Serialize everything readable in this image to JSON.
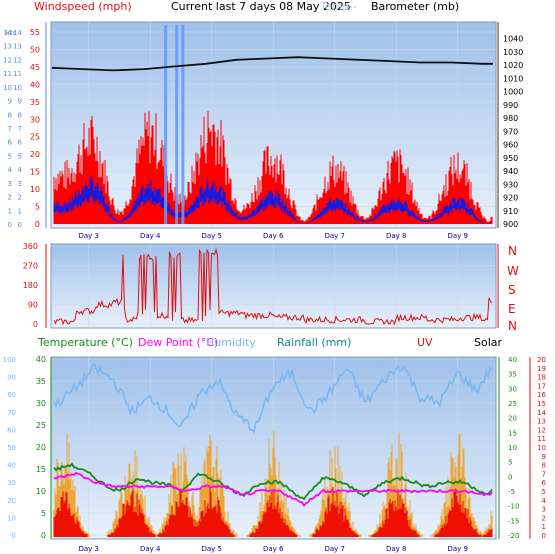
{
  "header": {
    "title": "Current last 7 days 08 May 2025",
    "windspeed_label": "Windspeed (mph)",
    "barometer_label": "Barometer (mb)",
    "temp_ghost": "Temp.",
    "dash_ghost": "---"
  },
  "panel2": {
    "compass": [
      "N",
      "W",
      "S",
      "E",
      "N"
    ]
  },
  "panel3": {
    "legend": {
      "temperature": "Temperature (°C)",
      "dewpoint": "Dew Point (°C)",
      "humidity": "Humidity",
      "rainfall": "Rainfall (mm)",
      "uv": "UV",
      "solar": "Solar"
    }
  },
  "colors": {
    "plot_bg_top": "#a9c6ea",
    "plot_bg_bottom": "#e2ecf8",
    "wind_gust": "#ff0000",
    "wind_avg": "#1a1adc",
    "pressure": "#111111",
    "direction": "#dd1111",
    "temperature": "#1a8a1a",
    "dewpoint": "#ff00ff",
    "humidity": "#7ab8f0",
    "solar": "#f0a020",
    "uv": "#ee1100",
    "rain_spike": "#6699ff"
  },
  "chart_data": [
    {
      "type": "line",
      "id": "wind_pressure",
      "categories": [
        "Day 3",
        "Day 4",
        "Day 5",
        "Day 6",
        "Day 7",
        "Day 8",
        "Day 9"
      ],
      "ylabel": "Windspeed (mph)",
      "ylim_mph": [
        0,
        55
      ],
      "y_ticks_mph": [
        0,
        5,
        10,
        15,
        20,
        25,
        30,
        35,
        40,
        45,
        50,
        55
      ],
      "y_ticks_ms": [
        0,
        1,
        2,
        3,
        4,
        5,
        6,
        7,
        8,
        9,
        10,
        11,
        12,
        13,
        14
      ],
      "y_ticks_kts": [
        0,
        1,
        2,
        3,
        4,
        5,
        6,
        7,
        8,
        9,
        10,
        11,
        12,
        13,
        14
      ],
      "ylim_mb": [
        900,
        1045
      ],
      "y_ticks_mb": [
        900,
        910,
        920,
        930,
        940,
        950,
        960,
        970,
        980,
        990,
        1000,
        1010,
        1020,
        1030,
        1040
      ],
      "y_label_left_small": "kts",
      "series": [
        {
          "name": "Barometer (mb)",
          "x": [
            0,
            0.5,
            1,
            1.5,
            2,
            2.5,
            3,
            3.5,
            4,
            4.5,
            5,
            5.5,
            6,
            6.5,
            7,
            7.3
          ],
          "values": [
            1018,
            1017,
            1016,
            1017,
            1019,
            1021,
            1024,
            1025,
            1026,
            1025,
            1024,
            1023,
            1022,
            1022,
            1021,
            1021
          ]
        },
        {
          "name": "Windspeed (mph)",
          "gust_peaks": [
            {
              "x": 0.1,
              "v": 16
            },
            {
              "x": 0.55,
              "v": 28
            },
            {
              "x": 1.0,
              "v": 4
            },
            {
              "x": 1.5,
              "v": 30
            },
            {
              "x": 2.0,
              "v": 8
            },
            {
              "x": 2.5,
              "v": 32
            },
            {
              "x": 3.0,
              "v": 5
            },
            {
              "x": 3.5,
              "v": 22
            },
            {
              "x": 4.0,
              "v": 1
            },
            {
              "x": 4.5,
              "v": 18
            },
            {
              "x": 5.0,
              "v": 2
            },
            {
              "x": 5.5,
              "v": 20
            },
            {
              "x": 6.0,
              "v": 2
            },
            {
              "x": 6.5,
              "v": 19
            },
            {
              "x": 7.0,
              "v": 1
            },
            {
              "x": 7.3,
              "v": 22
            }
          ]
        },
        {
          "name": "Wind average",
          "avg_peaks": [
            {
              "x": 0.1,
              "v": 6
            },
            {
              "x": 0.55,
              "v": 12
            },
            {
              "x": 1.0,
              "v": 1
            },
            {
              "x": 1.5,
              "v": 11
            },
            {
              "x": 2.0,
              "v": 3
            },
            {
              "x": 2.5,
              "v": 12
            },
            {
              "x": 3.0,
              "v": 2
            },
            {
              "x": 3.5,
              "v": 9
            },
            {
              "x": 4.0,
              "v": 0
            },
            {
              "x": 4.5,
              "v": 7
            },
            {
              "x": 5.0,
              "v": 1
            },
            {
              "x": 5.5,
              "v": 7
            },
            {
              "x": 6.0,
              "v": 1
            },
            {
              "x": 6.5,
              "v": 7
            },
            {
              "x": 7.0,
              "v": 0
            },
            {
              "x": 7.3,
              "v": 9
            }
          ]
        },
        {
          "name": "Rainfall spikes",
          "x": [
            1.75,
            1.93,
            2.03
          ],
          "values": [
            55,
            55,
            55
          ]
        }
      ]
    },
    {
      "type": "line",
      "id": "wind_direction",
      "categories": [
        "Day 3",
        "Day 4",
        "Day 5",
        "Day 6",
        "Day 7",
        "Day 8",
        "Day 9"
      ],
      "ylim_deg": [
        0,
        360
      ],
      "y_ticks_deg": [
        0,
        90,
        180,
        270,
        360
      ],
      "series": [
        {
          "name": "Wind direction",
          "x": [
            0,
            0.3,
            0.6,
            0.9,
            1.05,
            1.1,
            1.3,
            1.6,
            1.8,
            2.0,
            2.3,
            2.5,
            2.6,
            3.0,
            3.5,
            4.0,
            4.5,
            5.0,
            5.5,
            6.0,
            6.5,
            6.9,
            7.0,
            7.2,
            7.3
          ],
          "values": [
            10,
            60,
            90,
            100,
            320,
            20,
            310,
            40,
            320,
            15,
            340,
            330,
            50,
            40,
            30,
            20,
            20,
            10,
            30,
            20,
            30,
            20,
            110,
            190,
            110
          ]
        }
      ]
    },
    {
      "type": "line",
      "id": "temp_hum_rain_uv_solar",
      "categories": [
        "Day 3",
        "Day 4",
        "Day 5",
        "Day 6",
        "Day 7",
        "Day 8",
        "Day 9"
      ],
      "ylim_c": [
        0,
        40
      ],
      "y_ticks_c": [
        0,
        5,
        10,
        15,
        20,
        25,
        30,
        35,
        40
      ],
      "ylim_hum": [
        0,
        100
      ],
      "y_ticks_hum": [
        0,
        10,
        20,
        30,
        40,
        50,
        60,
        70,
        80,
        90,
        100
      ],
      "ylim_solar_right": [
        -20,
        40
      ],
      "y_ticks_right_temp": [
        -20,
        -15,
        -10,
        -5,
        0,
        5,
        10,
        15,
        20,
        25,
        30,
        35,
        40
      ],
      "y_ticks_uv": [
        0,
        1,
        2,
        3,
        4,
        5,
        6,
        7,
        8,
        9,
        10,
        11,
        12,
        13,
        14,
        15,
        16,
        17,
        18,
        19,
        20
      ],
      "series": [
        {
          "name": "Temperature (°C)",
          "x": [
            0,
            0.2,
            0.5,
            0.8,
            1.0,
            1.3,
            1.5,
            1.9,
            2.0,
            2.3,
            2.6,
            3.0,
            3.3,
            3.6,
            4.0,
            4.3,
            4.6,
            5.0,
            5.3,
            5.6,
            6.0,
            6.3,
            6.6,
            7.0,
            7.2,
            7.3
          ],
          "values": [
            15,
            16,
            14,
            11,
            10,
            13,
            12,
            11,
            10,
            14,
            12,
            9,
            12,
            12,
            8,
            13,
            12,
            9,
            12,
            13,
            11,
            12,
            12,
            9,
            13,
            13
          ]
        },
        {
          "name": "Dew Point (°C)",
          "x": [
            0,
            0.3,
            0.6,
            0.9,
            1.2,
            1.5,
            1.8,
            2.1,
            2.4,
            2.7,
            3.0,
            3.3,
            3.6,
            4.0,
            4.3,
            4.6,
            5.0,
            5.3,
            5.6,
            6.0,
            6.3,
            6.6,
            7.0,
            7.2,
            7.3
          ],
          "values": [
            13,
            14,
            12,
            11,
            11,
            11,
            11,
            10,
            11,
            11,
            9,
            10,
            10,
            7,
            10,
            10,
            10,
            10,
            10,
            10,
            10,
            10,
            9,
            12,
            12
          ]
        },
        {
          "name": "Humidity",
          "x": [
            0,
            0.3,
            0.6,
            0.9,
            1.2,
            1.5,
            1.8,
            2.0,
            2.3,
            2.6,
            2.9,
            3.2,
            3.5,
            3.8,
            4.1,
            4.4,
            4.7,
            5.0,
            5.3,
            5.6,
            5.9,
            6.2,
            6.5,
            6.8,
            7.1,
            7.3
          ],
          "values": [
            75,
            84,
            95,
            88,
            70,
            78,
            70,
            60,
            80,
            88,
            68,
            60,
            85,
            92,
            70,
            80,
            95,
            75,
            88,
            97,
            78,
            75,
            92,
            82,
            98,
            97
          ]
        },
        {
          "name": "Solar",
          "peaks": [
            0.1,
            1.2,
            2.0,
            2.5,
            3.5,
            4.5,
            5.5,
            6.5,
            7.3
          ]
        },
        {
          "name": "UV",
          "peaks": [
            0.1,
            1.2,
            2.0,
            2.5,
            3.5,
            4.5,
            5.5,
            6.5,
            7.3
          ]
        }
      ]
    }
  ]
}
